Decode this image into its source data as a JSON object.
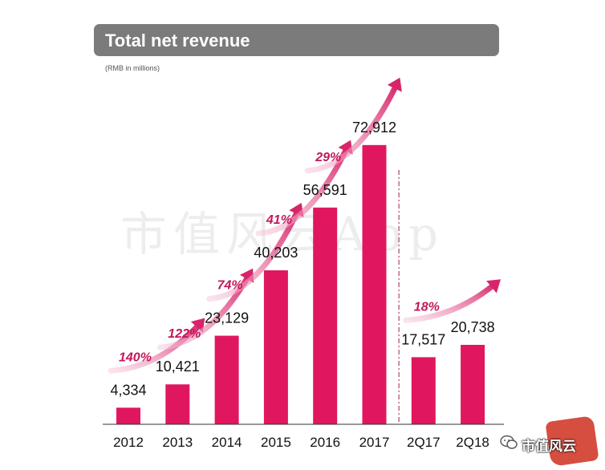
{
  "header": {
    "title": "Total net revenue",
    "subtitle": "(RMB in millions)"
  },
  "watermark": {
    "text": "市值风云App"
  },
  "logo": {
    "text": "市值风云",
    "icon": "wechat-icon",
    "stamp_color": "#d23b2b"
  },
  "colors": {
    "bar": "#e0175f",
    "arrow": "#d8246a",
    "growth_label": "#c2185b",
    "title_bar": "#7b7b7b"
  },
  "chart_data": {
    "type": "bar",
    "title": "Total net revenue",
    "subtitle": "(RMB in millions)",
    "xlabel": "",
    "ylabel": "",
    "categories": [
      "2012",
      "2013",
      "2014",
      "2015",
      "2016",
      "2017",
      "2Q17",
      "2Q18"
    ],
    "values": [
      4334,
      10421,
      23129,
      40203,
      56591,
      72912,
      17517,
      20738
    ],
    "value_labels": [
      "4,334",
      "10,421",
      "23,129",
      "40,203",
      "56,591",
      "72,912",
      "17,517",
      "20,738"
    ],
    "ylim": [
      0,
      80000
    ],
    "grid": false,
    "legend": "none",
    "growth_annotations": [
      {
        "label": "140%",
        "from": "2012",
        "to": "2013"
      },
      {
        "label": "122%",
        "from": "2013",
        "to": "2014"
      },
      {
        "label": "74%",
        "from": "2014",
        "to": "2015"
      },
      {
        "label": "41%",
        "from": "2015",
        "to": "2016"
      },
      {
        "label": "29%",
        "from": "2016",
        "to": "2017"
      },
      {
        "label": "18%",
        "from": "2Q17",
        "to": "2Q18"
      }
    ],
    "divider_after": "2017"
  }
}
